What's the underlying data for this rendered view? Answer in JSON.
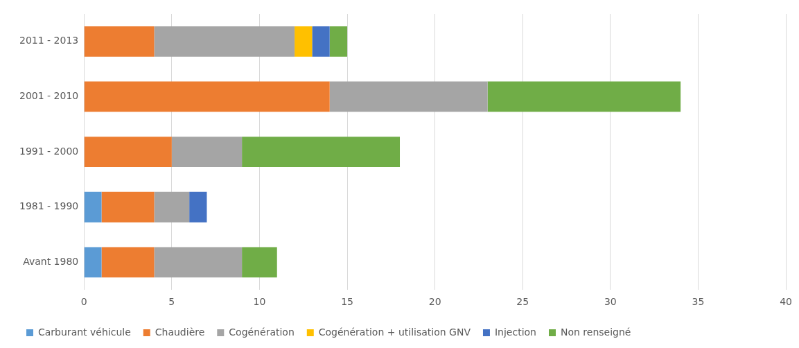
{
  "chart_data": {
    "type": "bar",
    "orientation": "horizontal",
    "stacked": true,
    "categories": [
      "2011 - 2013",
      "2001 - 2010",
      "1991 - 2000",
      "1981 - 1990",
      "Avant 1980"
    ],
    "series": [
      {
        "name": "Carburant véhicule",
        "color": "#5b9bd5",
        "values": [
          null,
          null,
          null,
          1,
          1
        ]
      },
      {
        "name": "Chaudière",
        "color": "#ed7d31",
        "values": [
          4,
          14,
          5,
          3,
          3
        ]
      },
      {
        "name": "Cogénération",
        "color": "#a5a5a5",
        "values": [
          8,
          9,
          4,
          2,
          5
        ]
      },
      {
        "name": "Cogénération + utilisation GNV",
        "color": "#ffc000",
        "values": [
          1,
          null,
          null,
          null,
          null
        ]
      },
      {
        "name": "Injection",
        "color": "#4472c4",
        "values": [
          1,
          null,
          null,
          1,
          null
        ]
      },
      {
        "name": "Non renseigné",
        "color": "#70ad47",
        "values": [
          1,
          11,
          9,
          null,
          2
        ]
      }
    ],
    "xlim": [
      0,
      40
    ],
    "xticks": [
      0,
      5,
      10,
      15,
      20,
      25,
      30,
      35,
      40
    ],
    "grid": "x",
    "legend": "bottom"
  }
}
